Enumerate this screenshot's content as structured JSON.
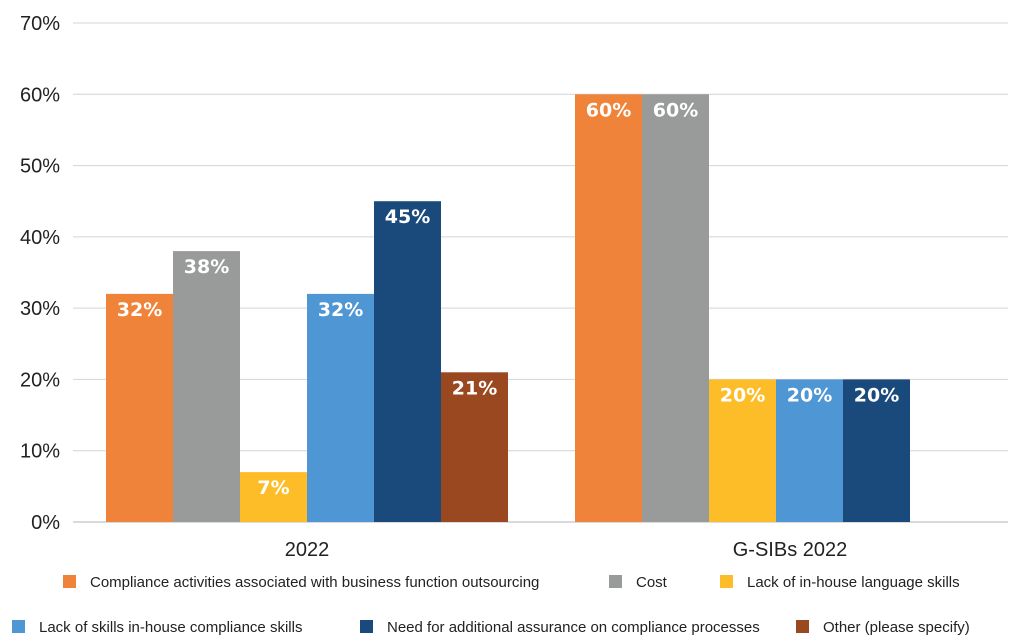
{
  "chart_data": {
    "type": "bar",
    "categories": [
      "2022",
      "G-SIBs 2022"
    ],
    "series": [
      {
        "name": "Compliance activities associated with business function outsourcing",
        "color": "#F0833A",
        "values": [
          32,
          60
        ],
        "labels": [
          "32%",
          "60%"
        ]
      },
      {
        "name": "Cost",
        "color": "#999B9B",
        "values": [
          38,
          60
        ],
        "labels": [
          "38%",
          "60%"
        ]
      },
      {
        "name": "Lack of in-house language skills",
        "color": "#FDBD28",
        "values": [
          7,
          20
        ],
        "labels": [
          "7%",
          "20%"
        ]
      },
      {
        "name": "Lack of skills in-house compliance skills",
        "color": "#4F96D4",
        "values": [
          32,
          20
        ],
        "labels": [
          "32%",
          "20%"
        ]
      },
      {
        "name": "Need for additional assurance on compliance processes",
        "color": "#1A4A7C",
        "values": [
          45,
          20
        ],
        "labels": [
          "45%",
          "20%"
        ]
      },
      {
        "name": "Other (please specify)",
        "color": "#9A4820",
        "values": [
          21,
          null
        ],
        "labels": [
          "21%",
          null
        ]
      }
    ],
    "yticks": [
      "0%",
      "10%",
      "20%",
      "30%",
      "40%",
      "50%",
      "60%",
      "70%"
    ],
    "ylim": [
      0,
      70
    ],
    "grid": true,
    "legend_position": "bottom",
    "title": "",
    "xlabel": "",
    "ylabel": ""
  }
}
